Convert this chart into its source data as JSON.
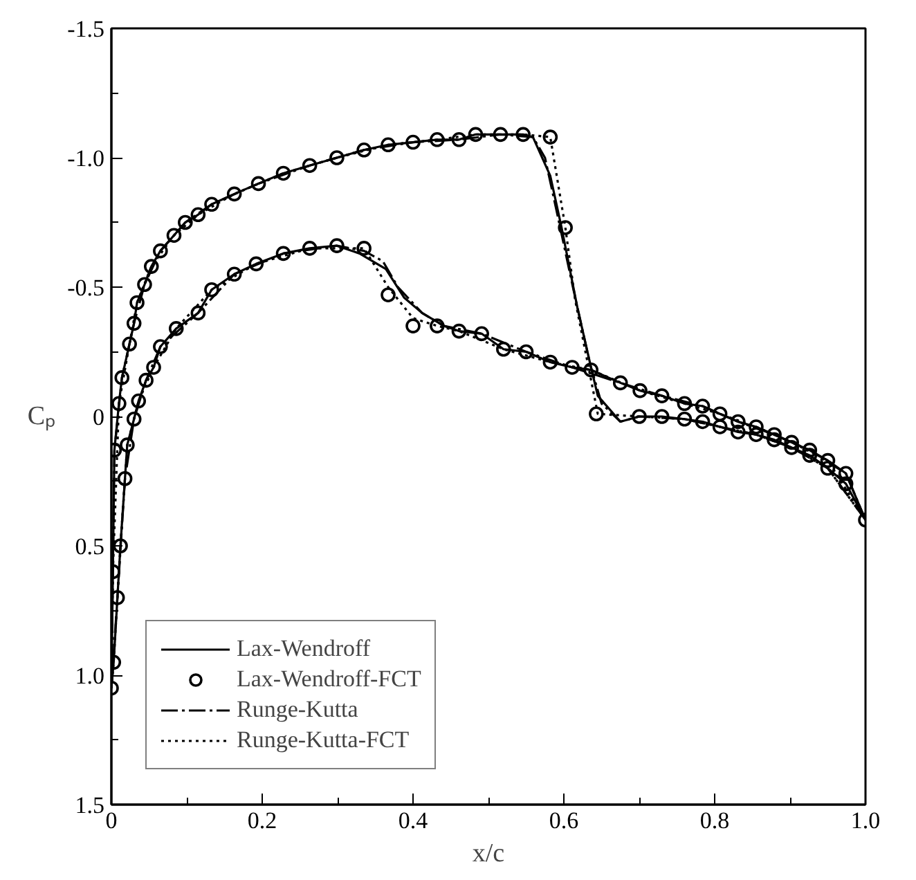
{
  "chart_data": {
    "type": "line",
    "xlabel": "x/c",
    "ylabel": "Cₚ",
    "xlim": [
      0,
      1.0
    ],
    "ylim": [
      1.5,
      -1.5
    ],
    "xticks": [
      0,
      {
        "value": 0.1,
        "label": null
      },
      0.2,
      {
        "value": 0.3,
        "label": null
      },
      0.4,
      {
        "value": 0.5,
        "label": null
      },
      0.6,
      {
        "value": 0.7,
        "label": null
      },
      0.8,
      {
        "value": 0.9,
        "label": null
      },
      {
        "value": 1.0,
        "label": "1.0"
      }
    ],
    "yticks": [
      {
        "value": -1.5,
        "label": "-1.5"
      },
      {
        "value": -1.25,
        "label": null
      },
      {
        "value": -1.0,
        "label": "-1.0"
      },
      {
        "value": -0.75,
        "label": null
      },
      {
        "value": -0.5,
        "label": "-0.5"
      },
      {
        "value": -0.25,
        "label": null
      },
      0,
      {
        "value": 0.25,
        "label": null
      },
      0.5,
      {
        "value": 0.75,
        "label": null
      },
      {
        "value": 1.0,
        "label": "1.0"
      },
      {
        "value": 1.25,
        "label": null
      },
      {
        "value": 1.5,
        "label": "1.5"
      }
    ],
    "grid": false,
    "legend": "bottom left",
    "series": [
      {
        "name": "Lax-Wendroff",
        "color": "#000000",
        "line_style": "solid",
        "x": [
          0,
          0.002,
          0.004,
          0.01,
          0.014,
          0.024,
          0.03,
          0.034,
          0.044,
          0.053,
          0.065,
          0.083,
          0.098,
          0.115,
          0.133,
          0.163,
          0.195,
          0.228,
          0.263,
          0.299,
          0.335,
          0.367,
          0.4,
          0.432,
          0.461,
          0.483,
          0.516,
          0.546,
          0.559,
          0.582,
          0.597,
          0.618,
          0.636,
          0.645,
          0.675,
          0.7,
          0.73,
          0.76,
          0.784,
          0.807,
          0.831,
          0.855,
          0.879,
          0.902,
          0.926,
          0.95,
          0.974,
          1.0
        ],
        "values": [
          1.05,
          0.6,
          0.13,
          -0.05,
          -0.15,
          -0.28,
          -0.36,
          -0.44,
          -0.51,
          -0.58,
          -0.64,
          -0.7,
          -0.75,
          -0.78,
          -0.82,
          -0.86,
          -0.9,
          -0.94,
          -0.97,
          -1.0,
          -1.03,
          -1.05,
          -1.06,
          -1.07,
          -1.07,
          -1.09,
          -1.09,
          -1.09,
          -1.08,
          -0.93,
          -0.73,
          -0.42,
          -0.19,
          -0.08,
          0.02,
          0.0,
          0.0,
          0.01,
          0.02,
          0.04,
          0.06,
          0.07,
          0.09,
          0.12,
          0.15,
          0.2,
          0.26,
          0.4
        ]
      },
      {
        "color": "#000000",
        "line_style": "solid",
        "x": [
          0,
          0.003,
          0.008,
          0.012,
          0.018,
          0.021,
          0.03,
          0.036,
          0.046,
          0.056,
          0.065,
          0.086,
          0.115,
          0.133,
          0.163,
          0.192,
          0.228,
          0.263,
          0.299,
          0.329,
          0.364,
          0.388,
          0.412,
          0.441,
          0.461,
          0.491,
          0.52,
          0.55,
          0.582,
          0.611,
          0.636,
          0.675,
          0.701,
          0.73,
          0.76,
          0.784,
          0.807,
          0.831,
          0.855,
          0.879,
          0.902,
          0.926,
          0.95,
          0.974,
          1.0
        ],
        "values": [
          1.05,
          0.95,
          0.7,
          0.5,
          0.24,
          0.11,
          0.01,
          -0.06,
          -0.14,
          -0.19,
          -0.27,
          -0.34,
          -0.4,
          -0.49,
          -0.55,
          -0.59,
          -0.63,
          -0.65,
          -0.66,
          -0.63,
          -0.57,
          -0.46,
          -0.4,
          -0.35,
          -0.33,
          -0.32,
          -0.26,
          -0.25,
          -0.21,
          -0.19,
          -0.18,
          -0.13,
          -0.1,
          -0.08,
          -0.05,
          -0.04,
          -0.01,
          0.02,
          0.04,
          0.07,
          0.1,
          0.13,
          0.17,
          0.22,
          0.4
        ]
      },
      {
        "name": "Lax-Wendroff-FCT",
        "color": "#000000",
        "type": "scatter",
        "marker": "circle",
        "x": [
          1.0,
          0.974,
          0.95,
          0.926,
          0.902,
          0.879,
          0.855,
          0.831,
          0.807,
          0.784,
          0.76,
          0.73,
          0.7,
          0.643,
          0.602,
          0.582,
          0.546,
          0.516,
          0.483,
          0.461,
          0.432,
          0.4,
          0.367,
          0.335,
          0.299,
          0.263,
          0.228,
          0.195,
          0.163,
          0.133,
          0.115,
          0.098,
          0.083,
          0.065,
          0.053,
          0.044,
          0.034,
          0.03,
          0.024,
          0.014,
          0.01,
          0.004,
          0.002,
          0,
          0.003,
          0.008,
          0.012,
          0.018,
          0.021,
          0.03,
          0.036,
          0.046,
          0.056,
          0.065,
          0.086,
          0.115,
          0.133,
          0.163,
          0.192,
          0.228,
          0.263,
          0.299,
          0.335,
          0.367,
          0.4,
          0.432,
          0.461,
          0.491,
          0.52,
          0.55,
          0.582,
          0.611,
          0.636,
          0.675,
          0.701,
          0.73,
          0.76,
          0.784,
          0.807,
          0.831,
          0.855,
          0.879,
          0.902,
          0.926,
          0.95,
          0.974
        ],
        "values": [
          0.4,
          0.26,
          0.2,
          0.15,
          0.12,
          0.09,
          0.07,
          0.06,
          0.04,
          0.02,
          0.01,
          0.0,
          0.0,
          -0.01,
          -0.73,
          -1.08,
          -1.09,
          -1.09,
          -1.09,
          -1.07,
          -1.07,
          -1.06,
          -1.05,
          -1.03,
          -1.0,
          -0.97,
          -0.94,
          -0.9,
          -0.86,
          -0.82,
          -0.78,
          -0.75,
          -0.7,
          -0.64,
          -0.58,
          -0.51,
          -0.44,
          -0.36,
          -0.28,
          -0.15,
          -0.05,
          0.13,
          0.6,
          1.05,
          0.95,
          0.7,
          0.5,
          0.24,
          0.11,
          0.01,
          -0.06,
          -0.14,
          -0.19,
          -0.27,
          -0.34,
          -0.4,
          -0.49,
          -0.55,
          -0.59,
          -0.63,
          -0.65,
          -0.66,
          -0.65,
          -0.47,
          -0.35,
          -0.35,
          -0.33,
          -0.32,
          -0.26,
          -0.25,
          -0.21,
          -0.19,
          -0.18,
          -0.13,
          -0.1,
          -0.08,
          -0.05,
          -0.04,
          -0.01,
          0.02,
          0.04,
          0.07,
          0.1,
          0.13,
          0.17,
          0.22
        ]
      },
      {
        "name": "Runge-Kutta",
        "color": "#000000",
        "line_style": "dashdot",
        "x": [
          0,
          0.004,
          0.014,
          0.03,
          0.044,
          0.065,
          0.098,
          0.133,
          0.195,
          0.263,
          0.335,
          0.4,
          0.461,
          0.516,
          0.559,
          0.575,
          0.59,
          0.612,
          0.635,
          0.65,
          0.675,
          0.7,
          0.76,
          0.807,
          0.855,
          0.902,
          0.95,
          1.0
        ],
        "values": [
          1.05,
          0.13,
          -0.15,
          -0.36,
          -0.51,
          -0.64,
          -0.75,
          -0.82,
          -0.9,
          -0.97,
          -1.03,
          -1.06,
          -1.07,
          -1.09,
          -1.08,
          -1.0,
          -0.8,
          -0.5,
          -0.2,
          -0.05,
          0.02,
          0.0,
          0.01,
          0.04,
          0.07,
          0.12,
          0.2,
          0.4
        ]
      },
      {
        "color": "#000000",
        "line_style": "dashdot",
        "x": [
          0,
          0.008,
          0.018,
          0.03,
          0.046,
          0.065,
          0.115,
          0.163,
          0.228,
          0.299,
          0.335,
          0.36,
          0.38,
          0.412,
          0.441,
          0.491,
          0.55,
          0.611,
          0.675,
          0.73,
          0.784,
          0.831,
          0.879,
          0.926,
          0.974,
          1.0
        ],
        "values": [
          1.05,
          0.7,
          0.24,
          0.01,
          -0.14,
          -0.27,
          -0.4,
          -0.55,
          -0.63,
          -0.66,
          -0.64,
          -0.6,
          -0.5,
          -0.4,
          -0.35,
          -0.32,
          -0.25,
          -0.19,
          -0.13,
          -0.08,
          -0.04,
          0.02,
          0.07,
          0.13,
          0.22,
          0.4
        ]
      },
      {
        "name": "Runge-Kutta-FCT",
        "color": "#000000",
        "line_style": "dotted",
        "x": [
          0,
          0.002,
          0.01,
          0.024,
          0.034,
          0.053,
          0.083,
          0.115,
          0.163,
          0.228,
          0.299,
          0.367,
          0.432,
          0.483,
          0.546,
          0.582,
          0.602,
          0.615,
          0.645,
          0.7,
          0.76,
          0.807,
          0.855,
          0.902,
          0.95,
          1.0
        ],
        "values": [
          1.05,
          0.6,
          -0.05,
          -0.28,
          -0.44,
          -0.58,
          -0.7,
          -0.78,
          -0.86,
          -0.94,
          -1.0,
          -1.05,
          -1.07,
          -1.09,
          -1.09,
          -1.08,
          -0.73,
          -0.45,
          -0.01,
          0.0,
          0.01,
          0.04,
          0.07,
          0.12,
          0.2,
          0.4
        ]
      },
      {
        "color": "#000000",
        "line_style": "dotted",
        "x": [
          0,
          0.003,
          0.012,
          0.021,
          0.036,
          0.056,
          0.086,
          0.133,
          0.192,
          0.263,
          0.335,
          0.367,
          0.4,
          0.432,
          0.461,
          0.52,
          0.582,
          0.636,
          0.701,
          0.76,
          0.807,
          0.855,
          0.902,
          0.95,
          1.0
        ],
        "values": [
          1.05,
          0.95,
          0.5,
          0.11,
          -0.06,
          -0.19,
          -0.34,
          -0.49,
          -0.59,
          -0.65,
          -0.65,
          -0.5,
          -0.38,
          -0.35,
          -0.33,
          -0.26,
          -0.21,
          -0.18,
          -0.1,
          -0.05,
          -0.01,
          0.04,
          0.1,
          0.17,
          0.4
        ]
      }
    ]
  }
}
